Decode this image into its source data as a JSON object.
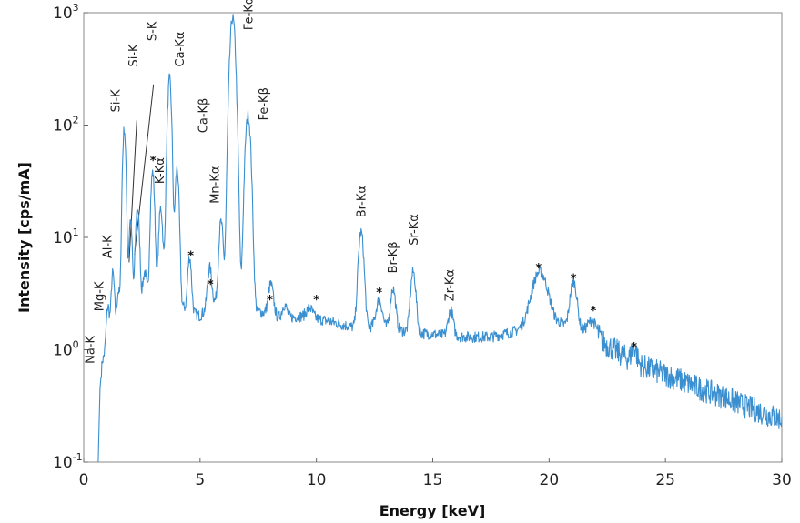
{
  "chart_data": {
    "type": "line",
    "title": "",
    "xlabel": "Energy [keV]",
    "ylabel": "Intensity [cps/mA]",
    "xlim": [
      0,
      30
    ],
    "ylim": [
      0.1,
      1000
    ],
    "yscale": "log",
    "grid": false,
    "line_color": "#3a8fd0",
    "x_ticks": [
      0,
      5,
      10,
      15,
      20,
      25,
      30
    ],
    "x_tick_labels": [
      "0",
      "5",
      "10",
      "15",
      "20",
      "25",
      "30"
    ],
    "y_ticks": [
      0.1,
      1,
      10,
      100,
      1000
    ],
    "y_tick_labels": [
      {
        "base": "10",
        "exp": "-1"
      },
      {
        "base": "10",
        "exp": "0"
      },
      {
        "base": "10",
        "exp": "1"
      },
      {
        "base": "10",
        "exp": "2"
      },
      {
        "base": "10",
        "exp": "3"
      }
    ],
    "background": [
      [
        0.62,
        0.1
      ],
      [
        0.7,
        0.45
      ],
      [
        0.8,
        0.8
      ],
      [
        1.0,
        1.0
      ],
      [
        1.3,
        1.4
      ],
      [
        1.7,
        1.9
      ],
      [
        2.2,
        2.3
      ],
      [
        3.0,
        3.2
      ],
      [
        3.5,
        3.3
      ],
      [
        4.5,
        2.2
      ],
      [
        5.0,
        2.0
      ],
      [
        5.5,
        2.6
      ],
      [
        6.0,
        2.8
      ],
      [
        7.5,
        2.2
      ],
      [
        8.5,
        1.9
      ],
      [
        9.5,
        2.0
      ],
      [
        10.5,
        1.8
      ],
      [
        11.5,
        1.6
      ],
      [
        12.5,
        1.6
      ],
      [
        13.5,
        1.5
      ],
      [
        14.5,
        1.4
      ],
      [
        15.5,
        1.35
      ],
      [
        16.5,
        1.3
      ],
      [
        17.5,
        1.3
      ],
      [
        18.5,
        1.45
      ],
      [
        19.0,
        1.6
      ],
      [
        20.5,
        1.7
      ],
      [
        21.5,
        1.45
      ],
      [
        22.5,
        1.1
      ],
      [
        23.5,
        0.8
      ],
      [
        24.5,
        0.65
      ],
      [
        25.5,
        0.55
      ],
      [
        26.5,
        0.45
      ],
      [
        27.5,
        0.38
      ],
      [
        28.5,
        0.31
      ],
      [
        29.5,
        0.26
      ],
      [
        30.0,
        0.24
      ]
    ],
    "peaks": [
      {
        "x": 1.04,
        "y": 1.4,
        "w": 0.06
      },
      {
        "x": 1.25,
        "y": 3.5,
        "w": 0.06
      },
      {
        "x": 1.49,
        "y": 1.7,
        "w": 0.06
      },
      {
        "x": 1.74,
        "y": 90,
        "w": 0.06
      },
      {
        "x": 2.01,
        "y": 12,
        "w": 0.06
      },
      {
        "x": 2.31,
        "y": 16,
        "w": 0.07
      },
      {
        "x": 2.62,
        "y": 2.2,
        "w": 0.07
      },
      {
        "x": 2.96,
        "y": 35,
        "w": 0.07
      },
      {
        "x": 3.31,
        "y": 15,
        "w": 0.07
      },
      {
        "x": 3.59,
        "y": 11,
        "w": 0.07
      },
      {
        "x": 3.69,
        "y": 250,
        "w": 0.07
      },
      {
        "x": 4.01,
        "y": 38,
        "w": 0.07
      },
      {
        "x": 4.55,
        "y": 4.5,
        "w": 0.07
      },
      {
        "x": 5.41,
        "y": 2.9,
        "w": 0.08
      },
      {
        "x": 5.9,
        "y": 11,
        "w": 0.08
      },
      {
        "x": 6.4,
        "y": 900,
        "w": 0.1
      },
      {
        "x": 7.06,
        "y": 120,
        "w": 0.1
      },
      {
        "x": 8.04,
        "y": 1.8,
        "w": 0.1
      },
      {
        "x": 8.63,
        "y": 0.6,
        "w": 0.1
      },
      {
        "x": 9.71,
        "y": 0.4,
        "w": 0.12
      },
      {
        "x": 11.92,
        "y": 9.5,
        "w": 0.1
      },
      {
        "x": 12.7,
        "y": 1.2,
        "w": 0.12
      },
      {
        "x": 13.29,
        "y": 2.0,
        "w": 0.1
      },
      {
        "x": 14.16,
        "y": 3.5,
        "w": 0.1
      },
      {
        "x": 15.77,
        "y": 0.9,
        "w": 0.1
      },
      {
        "x": 19.6,
        "y": 3.3,
        "w": 0.3
      },
      {
        "x": 21.05,
        "y": 2.5,
        "w": 0.13
      },
      {
        "x": 21.85,
        "y": 0.5,
        "w": 0.18
      },
      {
        "x": 23.65,
        "y": 0.3,
        "w": 0.1
      }
    ],
    "annotations": [
      {
        "text": "Na-K",
        "x": 0.45,
        "y": 0.75,
        "rotate": true
      },
      {
        "text": "Mg-K",
        "x": 0.85,
        "y": 2.2,
        "rotate": true
      },
      {
        "text": "Al-K",
        "x": 1.2,
        "y": 6.5,
        "rotate": true
      },
      {
        "text": "Si-K",
        "x": 1.55,
        "y": 130,
        "rotate": true
      },
      {
        "text": "Si-K",
        "x": 2.3,
        "y": 330,
        "rotate": true
      },
      {
        "text": "S-K",
        "x": 3.1,
        "y": 560,
        "rotate": true
      },
      {
        "text": "Ca-Kα",
        "x": 4.3,
        "y": 330,
        "rotate": true
      },
      {
        "text": "Ca-Kβ",
        "x": 5.3,
        "y": 85,
        "rotate": true
      },
      {
        "text": "K-Kα",
        "x": 3.45,
        "y": 30,
        "rotate": true
      },
      {
        "text": "Mn-Kα",
        "x": 5.8,
        "y": 20,
        "rotate": true
      },
      {
        "text": "Fe-Kα",
        "x": 7.25,
        "y": 700,
        "rotate": true
      },
      {
        "text": "Fe-Kβ",
        "x": 7.9,
        "y": 110,
        "rotate": true
      },
      {
        "text": "Br-Kα",
        "x": 12.1,
        "y": 15,
        "rotate": true
      },
      {
        "text": "Br-Kβ",
        "x": 13.45,
        "y": 4.8,
        "rotate": true
      },
      {
        "text": "Sr-Kα",
        "x": 14.35,
        "y": 8.5,
        "rotate": true
      },
      {
        "text": "Zr-Kα",
        "x": 15.9,
        "y": 2.7,
        "rotate": true
      }
    ],
    "leader_lines": [
      {
        "x1": 2.28,
        "y1": 110,
        "x2": 1.95,
        "y2": 6
      },
      {
        "x1": 3.0,
        "y1": 230,
        "x2": 2.18,
        "y2": 7
      }
    ],
    "star_markers": [
      {
        "x": 2.98,
        "y": 48
      },
      {
        "x": 4.6,
        "y": 6.8
      },
      {
        "x": 5.45,
        "y": 3.8
      },
      {
        "x": 8.0,
        "y": 2.75
      },
      {
        "x": 10.0,
        "y": 2.75
      },
      {
        "x": 12.7,
        "y": 3.2
      },
      {
        "x": 19.55,
        "y": 5.3
      },
      {
        "x": 21.05,
        "y": 4.3
      },
      {
        "x": 21.9,
        "y": 2.2
      },
      {
        "x": 23.65,
        "y": 1.05
      }
    ]
  }
}
